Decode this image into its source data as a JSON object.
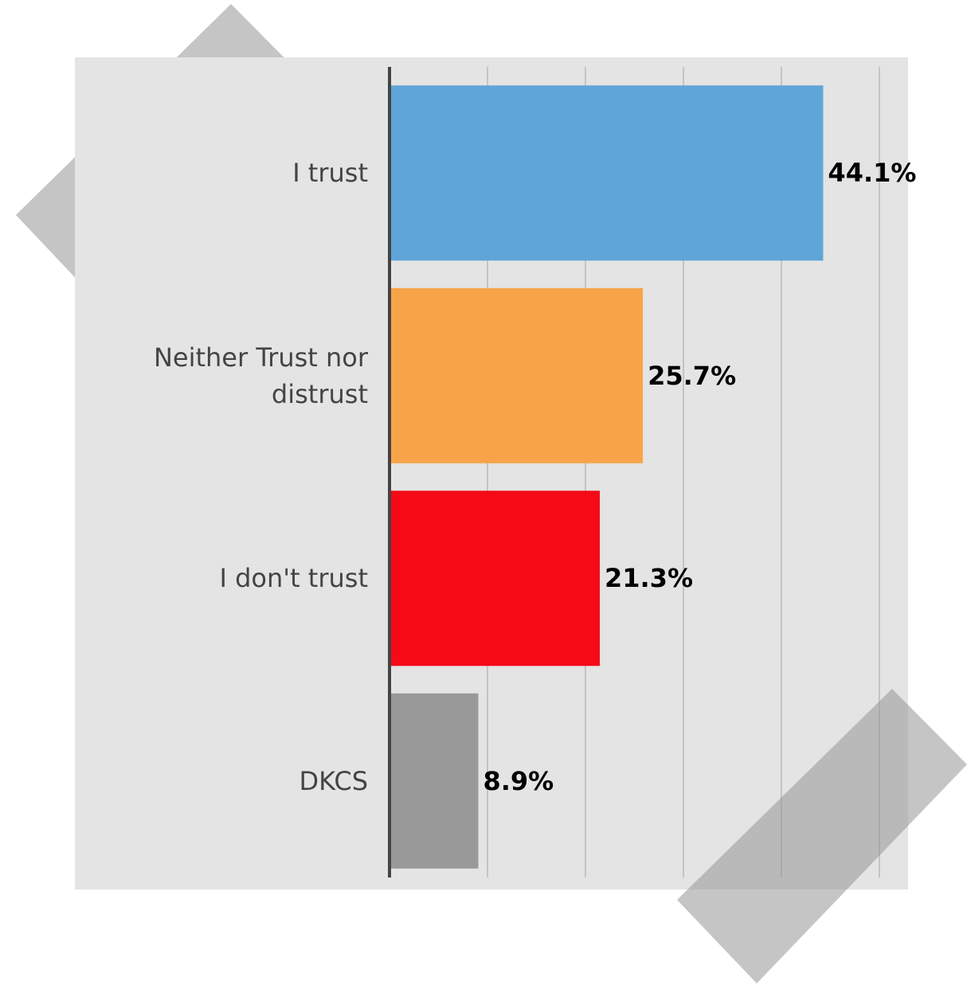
{
  "chart_data": {
    "type": "bar",
    "orientation": "horizontal",
    "categories": [
      "I trust",
      "Neither Trust nor distrust",
      "I don't trust",
      "DKCS"
    ],
    "values": [
      44.1,
      25.7,
      21.3,
      8.9
    ],
    "value_labels": [
      "44.1%",
      "25.7%",
      "21.3%",
      "8.9%"
    ],
    "colors": [
      "#5fa5d8",
      "#f7a449",
      "#f50a16",
      "#999999"
    ],
    "xlim": [
      0,
      50
    ],
    "xticks": [
      0,
      10,
      20,
      30,
      40,
      50
    ],
    "grid": true,
    "tick_labels": false
  }
}
